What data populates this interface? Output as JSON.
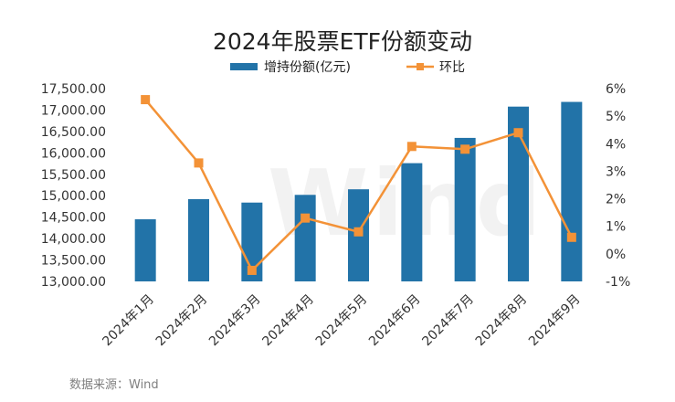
{
  "chart_data": {
    "type": "bar+line",
    "title": "2024年股票ETF份额变动",
    "categories": [
      "2024年1月",
      "2024年2月",
      "2024年3月",
      "2024年4月",
      "2024年5月",
      "2024年6月",
      "2024年7月",
      "2024年8月",
      "2024年9月"
    ],
    "series": [
      {
        "name": "增持份额(亿元)",
        "type": "bar",
        "axis": "left",
        "color": "#2273a8",
        "values": [
          14450,
          14920,
          14840,
          15020,
          15150,
          15760,
          16350,
          17080,
          17190
        ]
      },
      {
        "name": "环比",
        "type": "line",
        "axis": "right",
        "color": "#f39237",
        "values": [
          5.6,
          3.3,
          -0.6,
          1.3,
          0.8,
          3.9,
          3.8,
          4.4,
          0.6
        ]
      }
    ],
    "y_left": {
      "min": 13000,
      "max": 17500,
      "step": 500,
      "ticks": [
        "13,000.00",
        "13,500.00",
        "14,000.00",
        "14,500.00",
        "15,000.00",
        "15,500.00",
        "16,000.00",
        "16,500.00",
        "17,000.00",
        "17,500.00"
      ]
    },
    "y_right": {
      "min": -1,
      "max": 6,
      "step": 1,
      "ticks": [
        "-1%",
        "0%",
        "1%",
        "2%",
        "3%",
        "4%",
        "5%",
        "6%"
      ]
    },
    "legend_position": "top-center",
    "grid": false
  },
  "source": "数据来源：Wind",
  "watermark": "Wind"
}
